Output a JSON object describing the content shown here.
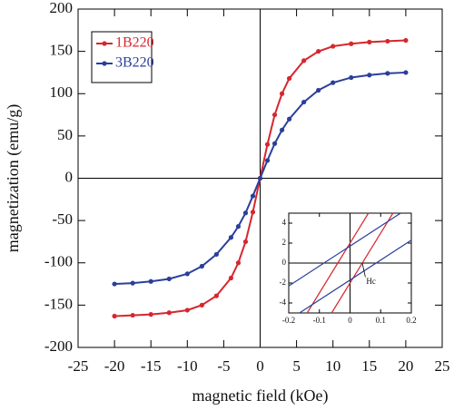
{
  "chart_data": [
    {
      "type": "line",
      "xlabel": "magnetic field (kOe)",
      "ylabel": "magnetization (emu/g)",
      "xlim": [
        -25,
        25
      ],
      "ylim": [
        -200,
        200
      ],
      "xticks": [
        -25,
        -20,
        -15,
        -10,
        -5,
        0,
        5,
        10,
        15,
        20,
        25
      ],
      "yticks": [
        -200,
        -150,
        -100,
        -50,
        0,
        50,
        100,
        150,
        200
      ],
      "legend": "upper left",
      "markers": true,
      "series": [
        {
          "name": "1B220",
          "color": "#d7262e",
          "x": [
            -20,
            -17.5,
            -15,
            -12.5,
            -10,
            -8,
            -6,
            -4,
            -3,
            -2,
            -1,
            0,
            1,
            2,
            3,
            4,
            6,
            8,
            10,
            12.5,
            15,
            17.5,
            20
          ],
          "values": [
            -163,
            -162,
            -161,
            -159,
            -156,
            -150,
            -139,
            -118,
            -100,
            -75,
            -40,
            0,
            40,
            75,
            100,
            118,
            139,
            150,
            156,
            159,
            161,
            162,
            163
          ]
        },
        {
          "name": "3B220",
          "color": "#2b3f9a",
          "x": [
            -20,
            -17.5,
            -15,
            -12.5,
            -10,
            -8,
            -6,
            -4,
            -3,
            -2,
            -1,
            0,
            1,
            2,
            3,
            4,
            6,
            8,
            10,
            12.5,
            15,
            17.5,
            20
          ],
          "values": [
            -125,
            -124,
            -122,
            -119,
            -113,
            -104,
            -90,
            -70,
            -57,
            -41,
            -21,
            0,
            21,
            41,
            57,
            70,
            90,
            104,
            113,
            119,
            122,
            124,
            125
          ]
        }
      ]
    },
    {
      "type": "line",
      "xlim": [
        -0.2,
        0.2
      ],
      "ylim": [
        -5,
        5
      ],
      "xticks": [
        -0.2,
        -0.1,
        0,
        0.1,
        0.2
      ],
      "yticks": [
        -4,
        -2,
        0,
        2,
        4
      ],
      "annotation": "Hc",
      "markers": false,
      "series": [
        {
          "color": "#d7262e",
          "x": [
            -0.14,
            0.06
          ],
          "values": [
            -5,
            5
          ]
        },
        {
          "color": "#d7262e",
          "x": [
            -0.06,
            0.14
          ],
          "values": [
            -5,
            5
          ]
        },
        {
          "color": "#2b3f9a",
          "x": [
            -0.2,
            0.165
          ],
          "values": [
            -2.3,
            5
          ]
        },
        {
          "color": "#2b3f9a",
          "x": [
            -0.165,
            0.2
          ],
          "values": [
            -5,
            2.3
          ]
        }
      ]
    }
  ]
}
